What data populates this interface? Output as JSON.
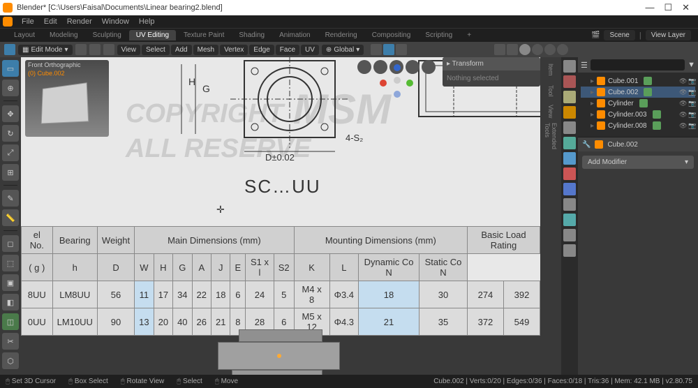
{
  "app": {
    "title": "Blender* [C:\\Users\\Faisal\\Documents\\Linear bearing2.blend]"
  },
  "menu": [
    "File",
    "Edit",
    "Render",
    "Window",
    "Help"
  ],
  "workspaces": [
    "Layout",
    "Modeling",
    "Sculpting",
    "UV Editing",
    "Texture Paint",
    "Shading",
    "Animation",
    "Rendering",
    "Compositing",
    "Scripting",
    "+"
  ],
  "active_workspace": "UV Editing",
  "scene_name": "Scene",
  "view_layer": "View Layer",
  "edit_mode": "Edit Mode",
  "view_menu": [
    "View",
    "Select",
    "Add",
    "Mesh",
    "Vertex",
    "Edge",
    "Face",
    "UV"
  ],
  "orientation": "Global",
  "preview": {
    "label": "Front Orthographic",
    "sub": "(0) Cube.002"
  },
  "transform_panel": {
    "title": "Transform",
    "body": "Nothing selected"
  },
  "drawing": {
    "title": "SC…UU",
    "labels": {
      "D": "D±0.02",
      "S": "4-S₂",
      "H": "H",
      "G": "G"
    },
    "watermarks": [
      "COPYRIGHT",
      "ALL RESERVE",
      "MSM"
    ]
  },
  "table": {
    "group_headers": [
      "el No.",
      "Bearing",
      "Weight",
      "Main Dimensions (mm)",
      "Mounting Dimensions (mm)",
      "Basic Load Rating"
    ],
    "sub_headers": [
      "",
      "",
      "( g )",
      "h",
      "D",
      "W",
      "H",
      "G",
      "A",
      "J",
      "E",
      "S1 x l",
      "S2",
      "K",
      "L",
      "Dynamic Co N",
      "Static Co N"
    ],
    "rows": [
      [
        "8UU",
        "LM8UU",
        "56",
        "11",
        "17",
        "34",
        "22",
        "18",
        "6",
        "24",
        "5",
        "M4 x 8",
        "Φ3.4",
        "18",
        "30",
        "274",
        "392"
      ],
      [
        "0UU",
        "LM10UU",
        "90",
        "13",
        "20",
        "40",
        "26",
        "21",
        "8",
        "28",
        "6",
        "M5 x 12",
        "Φ4.3",
        "21",
        "35",
        "372",
        "549"
      ]
    ],
    "highlight_cols": [
      3,
      13
    ]
  },
  "outliner": {
    "items": [
      {
        "name": "Cube.001",
        "sel": false
      },
      {
        "name": "Cube.002",
        "sel": true
      },
      {
        "name": "Cylinder",
        "sel": false
      },
      {
        "name": "Cylinder.003",
        "sel": false
      },
      {
        "name": "Cylinder.008",
        "sel": false
      }
    ]
  },
  "properties": {
    "obj": "Cube.002",
    "add_modifier": "Add Modifier"
  },
  "prop_tool_colors": [
    "#888",
    "#a55",
    "#aa7",
    "#c80",
    "#888",
    "#5a9",
    "#59c",
    "#c55",
    "#57c",
    "#888",
    "#5aa",
    "#888",
    "#888"
  ],
  "status": {
    "left": [
      "Set 3D Cursor",
      "Box Select",
      "Rotate View",
      "Select",
      "Move"
    ],
    "right": "Cube.002 | Verts:0/20 | Edges:0/36 | Faces:0/18 | Tris:36 | Mem: 42.1 MB | v2.80.75"
  },
  "gizmo_colors": {
    "x": "#d43",
    "y": "#5b3",
    "z": "#36c",
    "center": "#ccc"
  }
}
